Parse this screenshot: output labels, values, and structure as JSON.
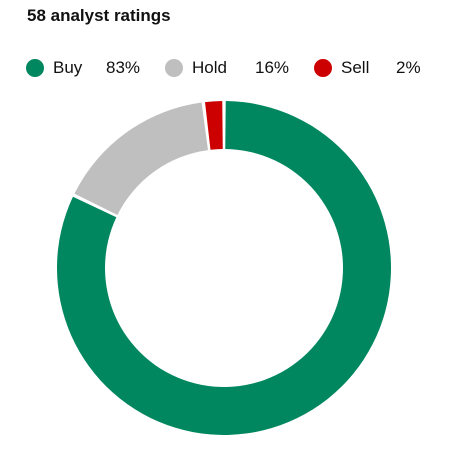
{
  "title": "58 analyst ratings",
  "chart_data": {
    "type": "pie",
    "donut": true,
    "title": "58 analyst ratings",
    "legend_position": "top",
    "series": [
      {
        "name": "Buy",
        "value": 83,
        "label": "83%",
        "color": "#00875f"
      },
      {
        "name": "Hold",
        "value": 16,
        "label": "16%",
        "color": "#bfbfbf"
      },
      {
        "name": "Sell",
        "value": 2,
        "label": "2%",
        "color": "#cc0000"
      }
    ]
  }
}
